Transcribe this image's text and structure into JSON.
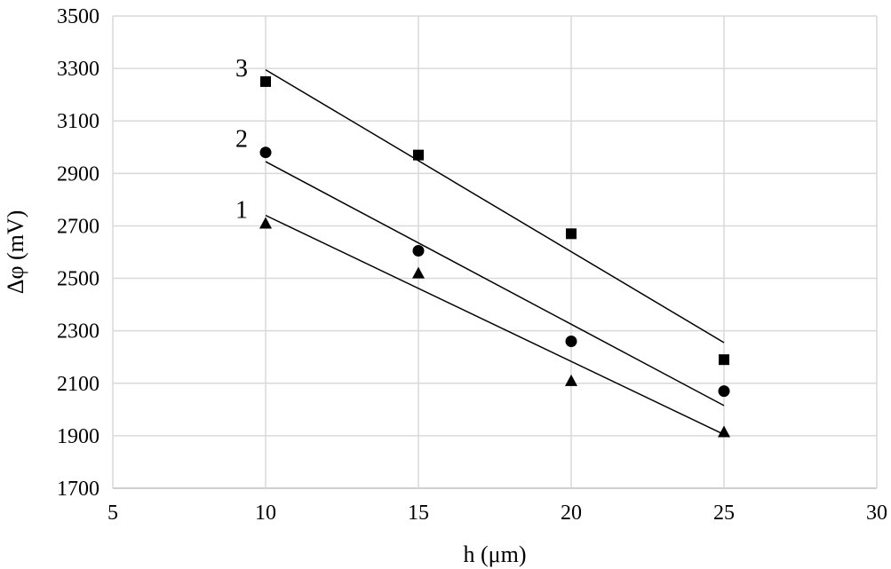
{
  "chart_data": {
    "type": "scatter",
    "title": "",
    "xlabel": "h (μm)",
    "ylabel": "Δφ (mV)",
    "xlim": [
      5,
      30
    ],
    "ylim": [
      1700,
      3500
    ],
    "xticks": [
      5,
      10,
      15,
      20,
      25,
      30
    ],
    "yticks": [
      1700,
      1900,
      2100,
      2300,
      2500,
      2700,
      2900,
      3100,
      3300,
      3500
    ],
    "grid": true,
    "legend": "none",
    "series": [
      {
        "name": "1",
        "marker": "triangle",
        "x": [
          10,
          15,
          20,
          25
        ],
        "y": [
          2710,
          2520,
          2110,
          1915
        ],
        "trend": [
          [
            10,
            2740
          ],
          [
            25,
            1905
          ]
        ]
      },
      {
        "name": "2",
        "marker": "circle",
        "x": [
          10,
          15,
          20,
          25
        ],
        "y": [
          2980,
          2605,
          2260,
          2070
        ],
        "trend": [
          [
            10,
            2945
          ],
          [
            25,
            2015
          ]
        ]
      },
      {
        "name": "3",
        "marker": "square",
        "x": [
          10,
          15,
          20,
          25
        ],
        "y": [
          3250,
          2970,
          2670,
          2190
        ],
        "trend": [
          [
            10,
            3295
          ],
          [
            25,
            2255
          ]
        ]
      }
    ],
    "colors": {
      "marker": "#000000",
      "grid": "#d9d9d9",
      "axis": "#bfbfbf"
    }
  }
}
